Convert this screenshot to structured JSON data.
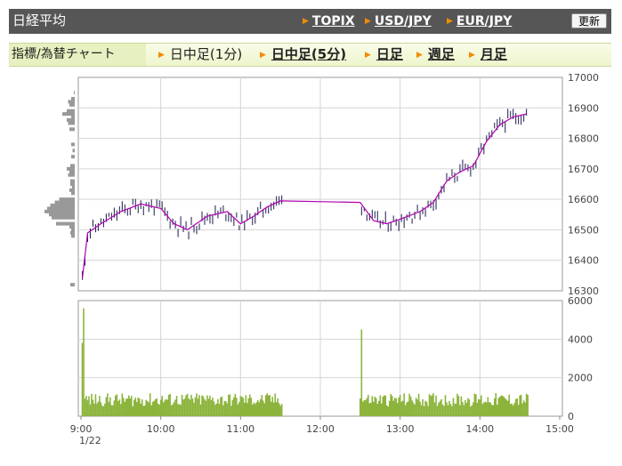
{
  "header": {
    "title": "日経平均",
    "links": [
      "TOPIX",
      "USD/JPY",
      "EUR/JPY"
    ],
    "refresh_label": "更新"
  },
  "tabs": {
    "section_label": "指標/為替チャート",
    "items": [
      {
        "label": "日中足(1分)",
        "active": true
      },
      {
        "label": "日中足(5分)",
        "active": false
      },
      {
        "label": "日足",
        "active": false
      },
      {
        "label": "週足",
        "active": false
      },
      {
        "label": "月足",
        "active": false
      }
    ]
  },
  "colors": {
    "header_bg": "#565656",
    "accent_arrow": "#f28c00",
    "tab_bg": "#eef5cc",
    "candle": "#1a1a4e",
    "moving_average": "#b000b0",
    "volume": "#8cb43c",
    "price_histogram": "#999999"
  },
  "chart_data": [
    {
      "type": "candlestick",
      "title": "",
      "x_axis": {
        "ticks": [
          "9:00",
          "10:00",
          "11:00",
          "12:00",
          "13:00",
          "14:00",
          "15:00"
        ],
        "date_label": "1/22"
      },
      "y_axis": {
        "ticks": [
          "16300",
          "16400",
          "16500",
          "16600",
          "16700",
          "16800",
          "16900",
          "17000"
        ],
        "ylim": [
          16300,
          17000
        ],
        "position": "right"
      },
      "grid": true,
      "moving_average_points": [
        [
          "9:01",
          16340
        ],
        [
          "9:05",
          16490
        ],
        [
          "9:15",
          16520
        ],
        [
          "9:30",
          16560
        ],
        [
          "9:45",
          16585
        ],
        [
          "10:00",
          16570
        ],
        [
          "10:10",
          16520
        ],
        [
          "10:20",
          16500
        ],
        [
          "10:35",
          16545
        ],
        [
          "10:50",
          16560
        ],
        [
          "11:00",
          16520
        ],
        [
          "11:10",
          16545
        ],
        [
          "11:20",
          16575
        ],
        [
          "11:30",
          16595
        ],
        [
          "12:30",
          16590
        ],
        [
          "12:40",
          16530
        ],
        [
          "12:50",
          16520
        ],
        [
          "13:00",
          16535
        ],
        [
          "13:15",
          16560
        ],
        [
          "13:25",
          16590
        ],
        [
          "13:35",
          16660
        ],
        [
          "13:45",
          16690
        ],
        [
          "13:55",
          16710
        ],
        [
          "14:05",
          16790
        ],
        [
          "14:15",
          16845
        ],
        [
          "14:25",
          16870
        ],
        [
          "14:35",
          16880
        ]
      ],
      "price_profile": [
        [
          16950,
          2
        ],
        [
          16930,
          8
        ],
        [
          16920,
          15
        ],
        [
          16910,
          12
        ],
        [
          16890,
          18
        ],
        [
          16880,
          28
        ],
        [
          16870,
          8
        ],
        [
          16860,
          18
        ],
        [
          16850,
          15
        ],
        [
          16830,
          12
        ],
        [
          16780,
          8
        ],
        [
          16760,
          5
        ],
        [
          16740,
          8
        ],
        [
          16710,
          10
        ],
        [
          16700,
          18
        ],
        [
          16690,
          12
        ],
        [
          16680,
          15
        ],
        [
          16660,
          10
        ],
        [
          16650,
          10
        ],
        [
          16640,
          6
        ],
        [
          16630,
          12
        ],
        [
          16620,
          8
        ],
        [
          16600,
          35
        ],
        [
          16590,
          45
        ],
        [
          16580,
          55
        ],
        [
          16570,
          62
        ],
        [
          16560,
          68
        ],
        [
          16550,
          58
        ],
        [
          16540,
          52
        ],
        [
          16520,
          42
        ],
        [
          16510,
          12
        ],
        [
          16500,
          8
        ],
        [
          16490,
          10
        ],
        [
          16480,
          8
        ],
        [
          16320,
          10
        ]
      ]
    },
    {
      "type": "bar",
      "title": "",
      "series_name": "",
      "y_axis": {
        "ticks": [
          "0",
          "2000",
          "4000",
          "6000"
        ],
        "ylim": [
          0,
          6000
        ],
        "position": "right"
      },
      "grid": true,
      "spikes": [
        [
          "9:01",
          3800
        ],
        [
          "9:02",
          5600
        ],
        [
          "12:31",
          4500
        ]
      ],
      "typical_volume": [
        500,
        1200
      ]
    }
  ]
}
